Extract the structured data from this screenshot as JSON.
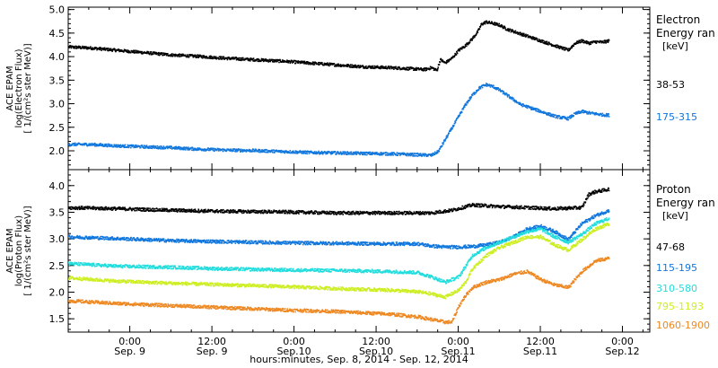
{
  "figure": {
    "xlabel": "hours:minutes, Sep.  8, 2014 - Sep. 12, 2014",
    "x_tick_labels": [
      {
        "t": 18,
        "line1": "0:00",
        "line2": "Sep. 9"
      },
      {
        "t": 30,
        "line1": "12:00",
        "line2": "Sep. 9"
      },
      {
        "t": 42,
        "line1": "0:00",
        "line2": "Sep.10"
      },
      {
        "t": 54,
        "line1": "12:00",
        "line2": "Sep.10"
      },
      {
        "t": 66,
        "line1": "0:00",
        "line2": "Sep.11"
      },
      {
        "t": 78,
        "line1": "12:00",
        "line2": "Sep.11"
      },
      {
        "t": 90,
        "line1": "0:00",
        "line2": "Sep.12"
      }
    ],
    "xlim": [
      9,
      94
    ]
  },
  "chart_data": [
    {
      "type": "scatter",
      "panel": "electron",
      "ylabel_lines": [
        "ACE EPAM",
        "log(Electron Flux)",
        "[ 1/(cm²s ster MeV)]"
      ],
      "ylim": [
        1.6,
        5.05
      ],
      "y_ticks": [
        2.0,
        2.5,
        3.0,
        3.5,
        4.0,
        4.5,
        5.0
      ],
      "legend_title": [
        "Electron",
        "Energy ran",
        "[keV]"
      ],
      "series": [
        {
          "name": "38-53",
          "color": "#000000",
          "x": [
            9,
            12,
            16,
            20,
            24,
            28,
            32,
            36,
            40,
            44,
            48,
            52,
            56,
            60,
            61,
            62,
            62.8,
            63.3,
            64,
            65,
            66,
            67,
            68,
            68.8,
            69.3,
            70,
            71,
            72,
            73,
            74,
            75,
            76,
            77,
            78,
            79,
            80,
            81,
            82,
            83,
            84,
            85,
            86,
            87,
            88
          ],
          "y": [
            4.22,
            4.2,
            4.15,
            4.1,
            4.05,
            4.02,
            3.98,
            3.95,
            3.92,
            3.88,
            3.84,
            3.8,
            3.78,
            3.75,
            3.74,
            3.78,
            3.72,
            3.95,
            3.88,
            3.98,
            4.15,
            4.25,
            4.4,
            4.55,
            4.7,
            4.75,
            4.72,
            4.68,
            4.6,
            4.55,
            4.5,
            4.45,
            4.4,
            4.35,
            4.3,
            4.25,
            4.2,
            4.15,
            4.3,
            4.35,
            4.3,
            4.33,
            4.32,
            4.35
          ]
        },
        {
          "name": "175-315",
          "color": "#1177dd",
          "x": [
            9,
            12,
            16,
            20,
            24,
            28,
            32,
            36,
            40,
            44,
            48,
            52,
            56,
            60,
            62,
            63,
            64,
            65,
            66,
            67,
            68,
            69,
            70,
            71,
            72,
            73,
            74,
            75,
            76,
            77,
            78,
            79,
            80,
            81,
            82,
            83,
            84,
            85,
            86,
            87,
            88
          ],
          "y": [
            2.15,
            2.15,
            2.12,
            2.1,
            2.08,
            2.05,
            2.03,
            2.02,
            2.0,
            1.98,
            1.97,
            1.96,
            1.95,
            1.93,
            1.92,
            2.0,
            2.25,
            2.5,
            2.75,
            3.0,
            3.2,
            3.35,
            3.42,
            3.38,
            3.3,
            3.2,
            3.1,
            3.0,
            2.95,
            2.9,
            2.85,
            2.8,
            2.75,
            2.72,
            2.7,
            2.8,
            2.85,
            2.82,
            2.8,
            2.78,
            2.77
          ]
        }
      ]
    },
    {
      "type": "scatter",
      "panel": "proton",
      "ylabel_lines": [
        "ACE EPAM",
        "log(Proton Flux)",
        "[ 1/(cm²s ster MeV)]"
      ],
      "ylim": [
        1.25,
        4.3
      ],
      "y_ticks": [
        1.5,
        2.0,
        2.5,
        3.0,
        3.5,
        4.0
      ],
      "legend_title": [
        "Proton",
        "Energy ran",
        "[keV]"
      ],
      "series": [
        {
          "name": "47-68",
          "color": "#000000",
          "x": [
            9,
            16,
            24,
            32,
            40,
            48,
            56,
            62,
            65,
            68,
            72,
            76,
            80,
            84,
            85,
            86,
            87,
            88
          ],
          "y": [
            3.6,
            3.58,
            3.55,
            3.53,
            3.52,
            3.5,
            3.5,
            3.5,
            3.55,
            3.65,
            3.62,
            3.6,
            3.58,
            3.6,
            3.85,
            3.9,
            3.92,
            3.95
          ]
        },
        {
          "name": "115-195",
          "color": "#1177dd",
          "x": [
            9,
            16,
            24,
            32,
            40,
            48,
            56,
            60,
            62,
            64,
            66,
            68,
            70,
            72,
            74,
            76,
            78,
            80,
            82,
            84,
            86,
            88
          ],
          "y": [
            3.05,
            3.02,
            2.98,
            2.96,
            2.94,
            2.93,
            2.92,
            2.92,
            2.88,
            2.86,
            2.86,
            2.87,
            2.9,
            2.95,
            3.05,
            3.2,
            3.25,
            3.15,
            3.0,
            3.3,
            3.45,
            3.55
          ]
        },
        {
          "name": "310-580",
          "color": "#22dddd",
          "x": [
            9,
            16,
            24,
            32,
            40,
            48,
            56,
            60,
            62,
            64,
            66,
            67,
            68,
            70,
            72,
            74,
            76,
            78,
            80,
            82,
            84,
            86,
            88
          ],
          "y": [
            2.55,
            2.5,
            2.48,
            2.45,
            2.43,
            2.42,
            2.4,
            2.38,
            2.3,
            2.2,
            2.3,
            2.5,
            2.7,
            2.85,
            2.95,
            3.05,
            3.15,
            3.2,
            3.05,
            2.95,
            3.1,
            3.3,
            3.4
          ]
        },
        {
          "name": "795-1193",
          "color": "#ccee22",
          "x": [
            9,
            16,
            24,
            32,
            40,
            48,
            56,
            60,
            62,
            64,
            66,
            67,
            68,
            70,
            72,
            74,
            76,
            78,
            80,
            82,
            84,
            86,
            88
          ],
          "y": [
            2.28,
            2.22,
            2.18,
            2.15,
            2.12,
            2.08,
            2.05,
            2.02,
            1.98,
            1.92,
            2.05,
            2.2,
            2.45,
            2.7,
            2.85,
            2.95,
            3.05,
            3.05,
            2.9,
            2.8,
            3.0,
            3.2,
            3.3
          ]
        },
        {
          "name": "1060-1900",
          "color": "#ee8822",
          "x": [
            9,
            16,
            24,
            32,
            40,
            48,
            56,
            60,
            62,
            64,
            65,
            66,
            67,
            68,
            70,
            72,
            74,
            76,
            78,
            80,
            82,
            84,
            86,
            88
          ],
          "y": [
            1.85,
            1.8,
            1.76,
            1.72,
            1.68,
            1.65,
            1.6,
            1.55,
            1.5,
            1.45,
            1.45,
            1.75,
            1.95,
            2.1,
            2.2,
            2.25,
            2.35,
            2.4,
            2.25,
            2.15,
            2.1,
            2.4,
            2.6,
            2.65
          ]
        }
      ]
    }
  ]
}
